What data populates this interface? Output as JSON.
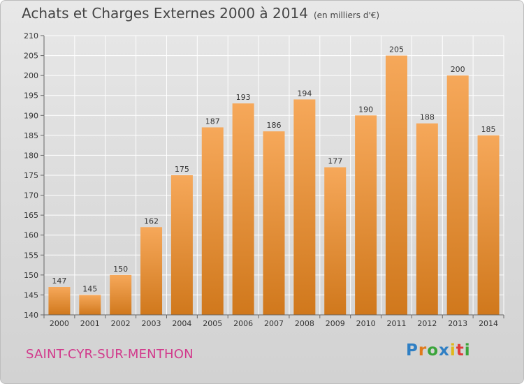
{
  "header": {
    "title": "Achats et Charges Externes 2000 à 2014",
    "unit": "(en milliers d'€)"
  },
  "footer": {
    "commune": "SAINT-CYR-SUR-MENTHON",
    "logo": "Proxiti"
  },
  "colors": {
    "bar_light": "#f6a85a",
    "bar_dark": "#d0781c",
    "commune_text": "#d23a8c",
    "logo_letters": [
      "#2f7fc4",
      "#e07a1a",
      "#3aa43a",
      "#2f7fc4",
      "#e0b71a",
      "#e03a3a",
      "#3aa43a"
    ]
  },
  "chart_data": {
    "type": "bar",
    "title": "Achats et Charges Externes 2000 à 2014",
    "subtitle": "(en milliers d'€)",
    "xlabel": "",
    "ylabel": "",
    "categories": [
      "2000",
      "2001",
      "2002",
      "2003",
      "2004",
      "2005",
      "2006",
      "2007",
      "2008",
      "2009",
      "2010",
      "2011",
      "2012",
      "2013",
      "2014"
    ],
    "values": [
      147,
      145,
      150,
      162,
      175,
      187,
      193,
      186,
      194,
      177,
      190,
      205,
      188,
      200,
      185
    ],
    "ylim": [
      140,
      210
    ],
    "yticks": [
      140,
      145,
      150,
      155,
      160,
      165,
      170,
      175,
      180,
      185,
      190,
      195,
      200,
      205,
      210
    ],
    "grid": true,
    "data_labels": true
  }
}
